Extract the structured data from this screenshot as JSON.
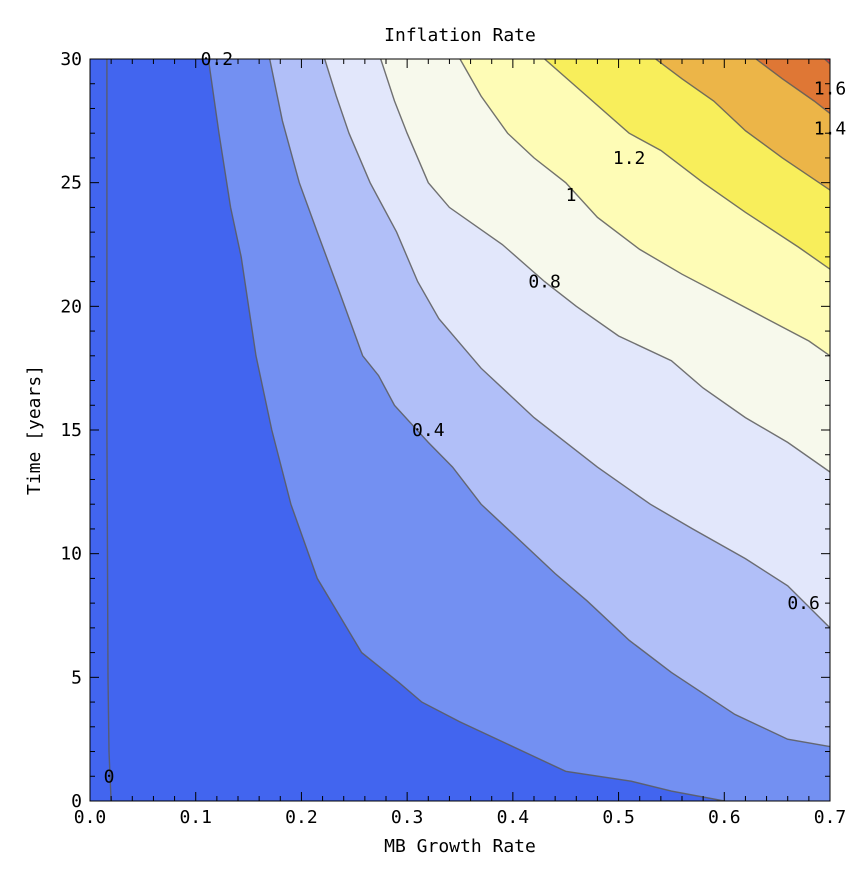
{
  "chart_data": {
    "type": "contour",
    "title": "Inflation Rate",
    "xlabel": "MB Growth Rate",
    "ylabel": "Time [years]",
    "xlim": [
      0.0,
      0.7
    ],
    "ylim": [
      0,
      30
    ],
    "x_ticks": [
      {
        "value": 0.0,
        "label": "0.0"
      },
      {
        "value": 0.1,
        "label": "0.1"
      },
      {
        "value": 0.2,
        "label": "0.2"
      },
      {
        "value": 0.3,
        "label": "0.3"
      },
      {
        "value": 0.4,
        "label": "0.4"
      },
      {
        "value": 0.5,
        "label": "0.5"
      },
      {
        "value": 0.6,
        "label": "0.6"
      },
      {
        "value": 0.7,
        "label": "0.7"
      }
    ],
    "y_ticks": [
      {
        "value": 0,
        "label": "0"
      },
      {
        "value": 5,
        "label": "5"
      },
      {
        "value": 10,
        "label": "10"
      },
      {
        "value": 15,
        "label": "15"
      },
      {
        "value": 20,
        "label": "20"
      },
      {
        "value": 25,
        "label": "25"
      },
      {
        "value": 30,
        "label": "30"
      }
    ],
    "contours": [
      {
        "level": 0,
        "label": "0",
        "label_at": [
          0.018,
          1.0
        ],
        "points": [
          [
            0.016,
            30
          ],
          [
            0.016,
            15
          ],
          [
            0.017,
            5
          ],
          [
            0.018,
            2
          ],
          [
            0.02,
            0
          ]
        ]
      },
      {
        "level": 0.2,
        "label": "0.2",
        "label_at": [
          0.12,
          30
        ],
        "points": [
          [
            0.112,
            30
          ],
          [
            0.122,
            27
          ],
          [
            0.133,
            24
          ],
          [
            0.143,
            22
          ],
          [
            0.157,
            18
          ],
          [
            0.172,
            15
          ],
          [
            0.19,
            12
          ],
          [
            0.215,
            9
          ],
          [
            0.257,
            6
          ],
          [
            0.292,
            4.8
          ],
          [
            0.314,
            4
          ],
          [
            0.35,
            3.2
          ],
          [
            0.41,
            2
          ],
          [
            0.45,
            1.2
          ],
          [
            0.512,
            0.8
          ],
          [
            0.55,
            0.4
          ],
          [
            0.6,
            0
          ]
        ]
      },
      {
        "level": 0.4,
        "label": "0.4",
        "label_at": [
          0.32,
          15
        ],
        "points": [
          [
            0.17,
            30
          ],
          [
            0.182,
            27.5
          ],
          [
            0.198,
            25
          ],
          [
            0.215,
            23
          ],
          [
            0.235,
            20.7
          ],
          [
            0.258,
            18
          ],
          [
            0.273,
            17.2
          ],
          [
            0.288,
            16
          ],
          [
            0.32,
            14.5
          ],
          [
            0.343,
            13.5
          ],
          [
            0.37,
            12
          ],
          [
            0.4,
            10.8
          ],
          [
            0.44,
            9.2
          ],
          [
            0.47,
            8.1
          ],
          [
            0.51,
            6.5
          ],
          [
            0.55,
            5.2
          ],
          [
            0.61,
            3.5
          ],
          [
            0.66,
            2.5
          ],
          [
            0.7,
            2.2
          ]
        ]
      },
      {
        "level": 0.6,
        "label": "0.6",
        "label_at": [
          0.675,
          8.0
        ],
        "points": [
          [
            0.222,
            30
          ],
          [
            0.233,
            28.5
          ],
          [
            0.245,
            27
          ],
          [
            0.265,
            25
          ],
          [
            0.29,
            23
          ],
          [
            0.31,
            21
          ],
          [
            0.33,
            19.5
          ],
          [
            0.37,
            17.5
          ],
          [
            0.42,
            15.5
          ],
          [
            0.48,
            13.5
          ],
          [
            0.53,
            12
          ],
          [
            0.57,
            11
          ],
          [
            0.62,
            9.8
          ],
          [
            0.66,
            8.7
          ],
          [
            0.7,
            7
          ]
        ]
      },
      {
        "level": 0.8,
        "label": "0.8",
        "label_at": [
          0.43,
          21
        ],
        "points": [
          [
            0.275,
            30
          ],
          [
            0.288,
            28.3
          ],
          [
            0.3,
            27
          ],
          [
            0.32,
            25
          ],
          [
            0.34,
            24
          ],
          [
            0.39,
            22.5
          ],
          [
            0.43,
            21
          ],
          [
            0.46,
            20
          ],
          [
            0.5,
            18.8
          ],
          [
            0.55,
            17.8
          ],
          [
            0.58,
            16.7
          ],
          [
            0.62,
            15.5
          ],
          [
            0.66,
            14.5
          ],
          [
            0.7,
            13.3
          ]
        ]
      },
      {
        "level": 1.0,
        "label": "1",
        "label_at": [
          0.455,
          24.5
        ],
        "points": [
          [
            0.35,
            30
          ],
          [
            0.37,
            28.5
          ],
          [
            0.395,
            27
          ],
          [
            0.42,
            26
          ],
          [
            0.45,
            25
          ],
          [
            0.48,
            23.6
          ],
          [
            0.52,
            22.3
          ],
          [
            0.56,
            21.3
          ],
          [
            0.6,
            20.4
          ],
          [
            0.64,
            19.5
          ],
          [
            0.68,
            18.6
          ],
          [
            0.7,
            18
          ]
        ]
      },
      {
        "level": 1.2,
        "label": "1.2",
        "label_at": [
          0.51,
          26
        ],
        "points": [
          [
            0.43,
            30
          ],
          [
            0.47,
            28.5
          ],
          [
            0.51,
            27
          ],
          [
            0.54,
            26.3
          ],
          [
            0.58,
            25
          ],
          [
            0.62,
            23.8
          ],
          [
            0.67,
            22.4
          ],
          [
            0.7,
            21.5
          ]
        ]
      },
      {
        "level": 1.4,
        "label": "1.4",
        "label_at": [
          0.7,
          27.2
        ],
        "points": [
          [
            0.535,
            30
          ],
          [
            0.56,
            29.2
          ],
          [
            0.59,
            28.3
          ],
          [
            0.62,
            27.1
          ],
          [
            0.655,
            26
          ],
          [
            0.7,
            24.7
          ]
        ]
      },
      {
        "level": 1.6,
        "label": "1.6",
        "label_at": [
          0.7,
          28.8
        ],
        "points": [
          [
            0.63,
            30
          ],
          [
            0.655,
            29.2
          ],
          [
            0.685,
            28.3
          ],
          [
            0.7,
            27.8
          ]
        ]
      },
      {
        "level": 1.8,
        "points": [
          [
            0.695,
            30
          ],
          [
            0.7,
            29.8
          ]
        ]
      }
    ],
    "bands": [
      {
        "from": -1,
        "to": 0.2,
        "color": "#4265ef"
      },
      {
        "from": 0.2,
        "to": 0.4,
        "color": "#7390f2"
      },
      {
        "from": 0.4,
        "to": 0.6,
        "color": "#b1bff8"
      },
      {
        "from": 0.6,
        "to": 0.8,
        "color": "#e2e7fb"
      },
      {
        "from": 0.8,
        "to": 1.0,
        "color": "#f7f9ec"
      },
      {
        "from": 1.0,
        "to": 1.2,
        "color": "#fefcb6"
      },
      {
        "from": 1.2,
        "to": 1.4,
        "color": "#f8ee5b"
      },
      {
        "from": 1.4,
        "to": 1.6,
        "color": "#ecb548"
      },
      {
        "from": 1.6,
        "to": 1.8,
        "color": "#df7735"
      },
      {
        "from": 1.8,
        "to": 99,
        "color": "#d83a38"
      }
    ],
    "grid": false,
    "legend": "none"
  }
}
